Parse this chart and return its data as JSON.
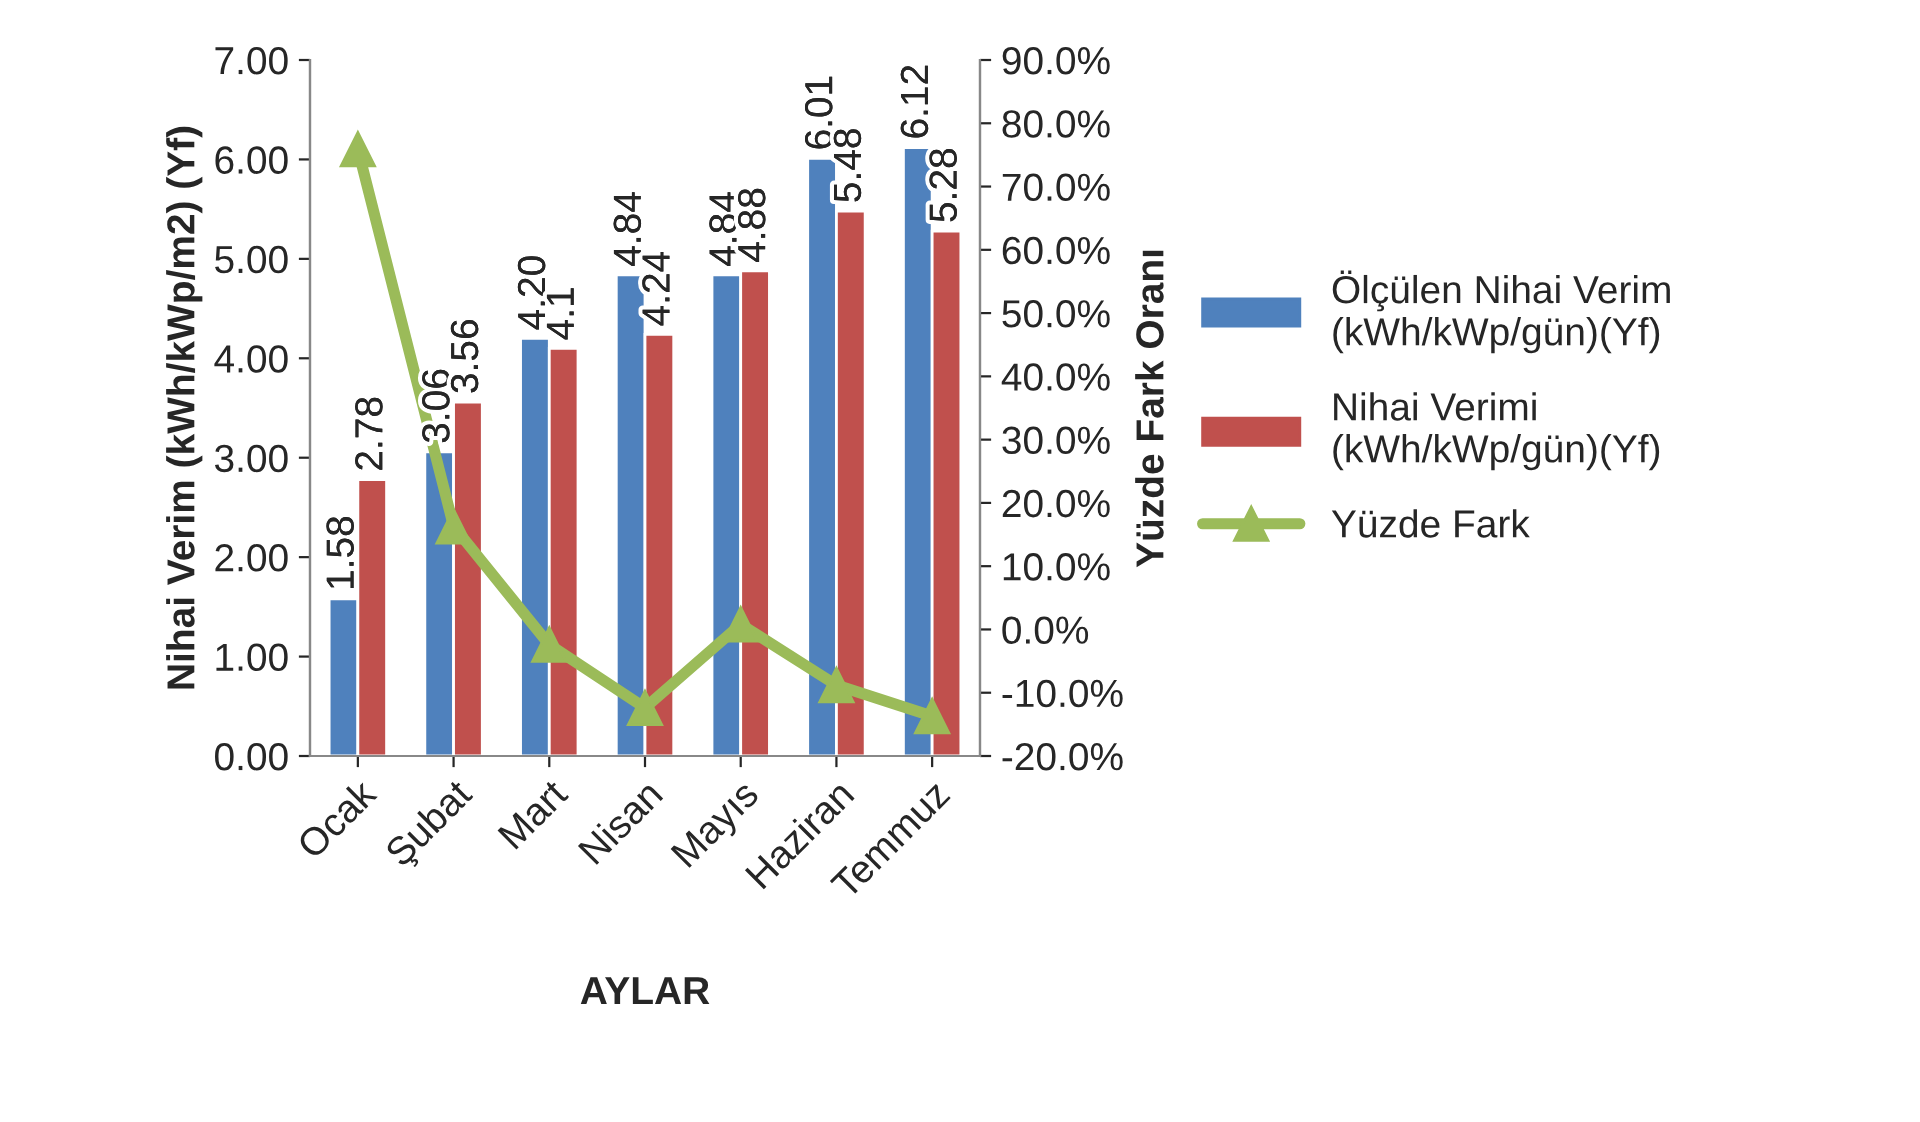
{
  "chart_data": {
    "type": "bar",
    "xlabel": "AYLAR",
    "ylabel": "Nihai Verim (kWh/kWp/m2) (Yf)",
    "y2label": "Yüzde Fark Oranı",
    "categories": [
      "Ocak",
      "Şubat",
      "Mart",
      "Nisan",
      "Mayıs",
      "Haziran",
      "Temmuz"
    ],
    "series": [
      {
        "name": "Ölçülen Nihai Verim (kWh/kWp/gün)(Yf)",
        "color": "#4f81bd",
        "values": [
          1.58,
          3.06,
          4.2,
          4.84,
          4.84,
          6.01,
          6.12
        ],
        "value_labels": [
          "1.58",
          "3.06",
          "4.20",
          "4.84",
          "4.84",
          "6.01",
          "6.12"
        ]
      },
      {
        "name": "Nihai Verimi (kWh/kWp/gün)(Yf)",
        "color": "#c0504d",
        "values": [
          2.78,
          3.56,
          4.1,
          4.24,
          4.88,
          5.48,
          5.28
        ],
        "value_labels": [
          "2.78",
          "3.56",
          "4.1",
          "4.24",
          "4.88",
          "5.48",
          "5.28"
        ]
      },
      {
        "name": "Yüzde Fark",
        "type": "line",
        "axis": "y2",
        "color": "#9bbb59",
        "marker": "triangle",
        "values": [
          75.9,
          16.3,
          -2.4,
          -12.4,
          0.8,
          -8.8,
          -13.7
        ]
      }
    ],
    "ylim": [
      0,
      7
    ],
    "yticks": [
      {
        "value": 0,
        "label": "0.00"
      },
      {
        "value": 1,
        "label": "1.00"
      },
      {
        "value": 2,
        "label": "2.00"
      },
      {
        "value": 3,
        "label": "3.00"
      },
      {
        "value": 4,
        "label": "4.00"
      },
      {
        "value": 5,
        "label": "5.00"
      },
      {
        "value": 6,
        "label": "6.00"
      },
      {
        "value": 7,
        "label": "7.00"
      }
    ],
    "y2lim": [
      -20,
      90
    ],
    "y2ticks": [
      {
        "value": -20,
        "label": "-20.0%"
      },
      {
        "value": -10,
        "label": "-10.0%"
      },
      {
        "value": 0,
        "label": "0.0%"
      },
      {
        "value": 10,
        "label": "10.0%"
      },
      {
        "value": 20,
        "label": "20.0%"
      },
      {
        "value": 30,
        "label": "30.0%"
      },
      {
        "value": 40,
        "label": "40.0%"
      },
      {
        "value": 50,
        "label": "50.0%"
      },
      {
        "value": 60,
        "label": "60.0%"
      },
      {
        "value": 70,
        "label": "70.0%"
      },
      {
        "value": 80,
        "label": "80.0%"
      },
      {
        "value": 90,
        "label": "90.0%"
      }
    ],
    "grid": false,
    "legend": "right"
  }
}
